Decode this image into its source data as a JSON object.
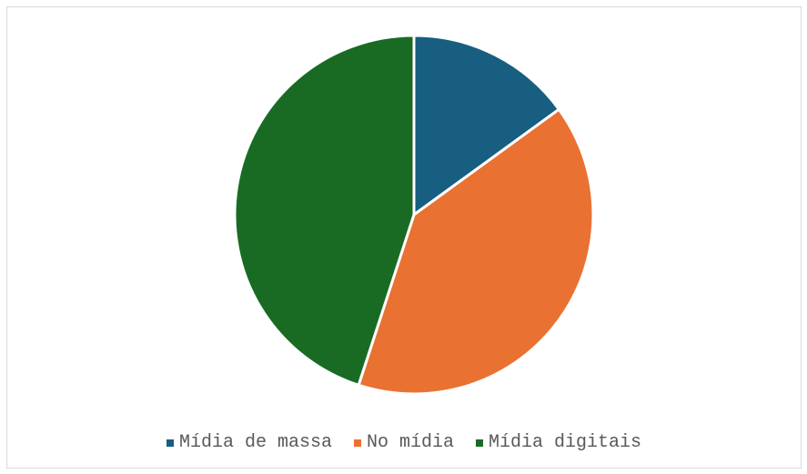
{
  "chart_data": {
    "type": "pie",
    "categories": [
      "Mídia de massa",
      "No mídia",
      "Mídia digitais"
    ],
    "values": [
      15,
      40,
      45
    ],
    "colors": [
      "#175e80",
      "#e97132",
      "#196b24"
    ],
    "legend_position": "bottom",
    "start_angle": "top, clockwise"
  }
}
